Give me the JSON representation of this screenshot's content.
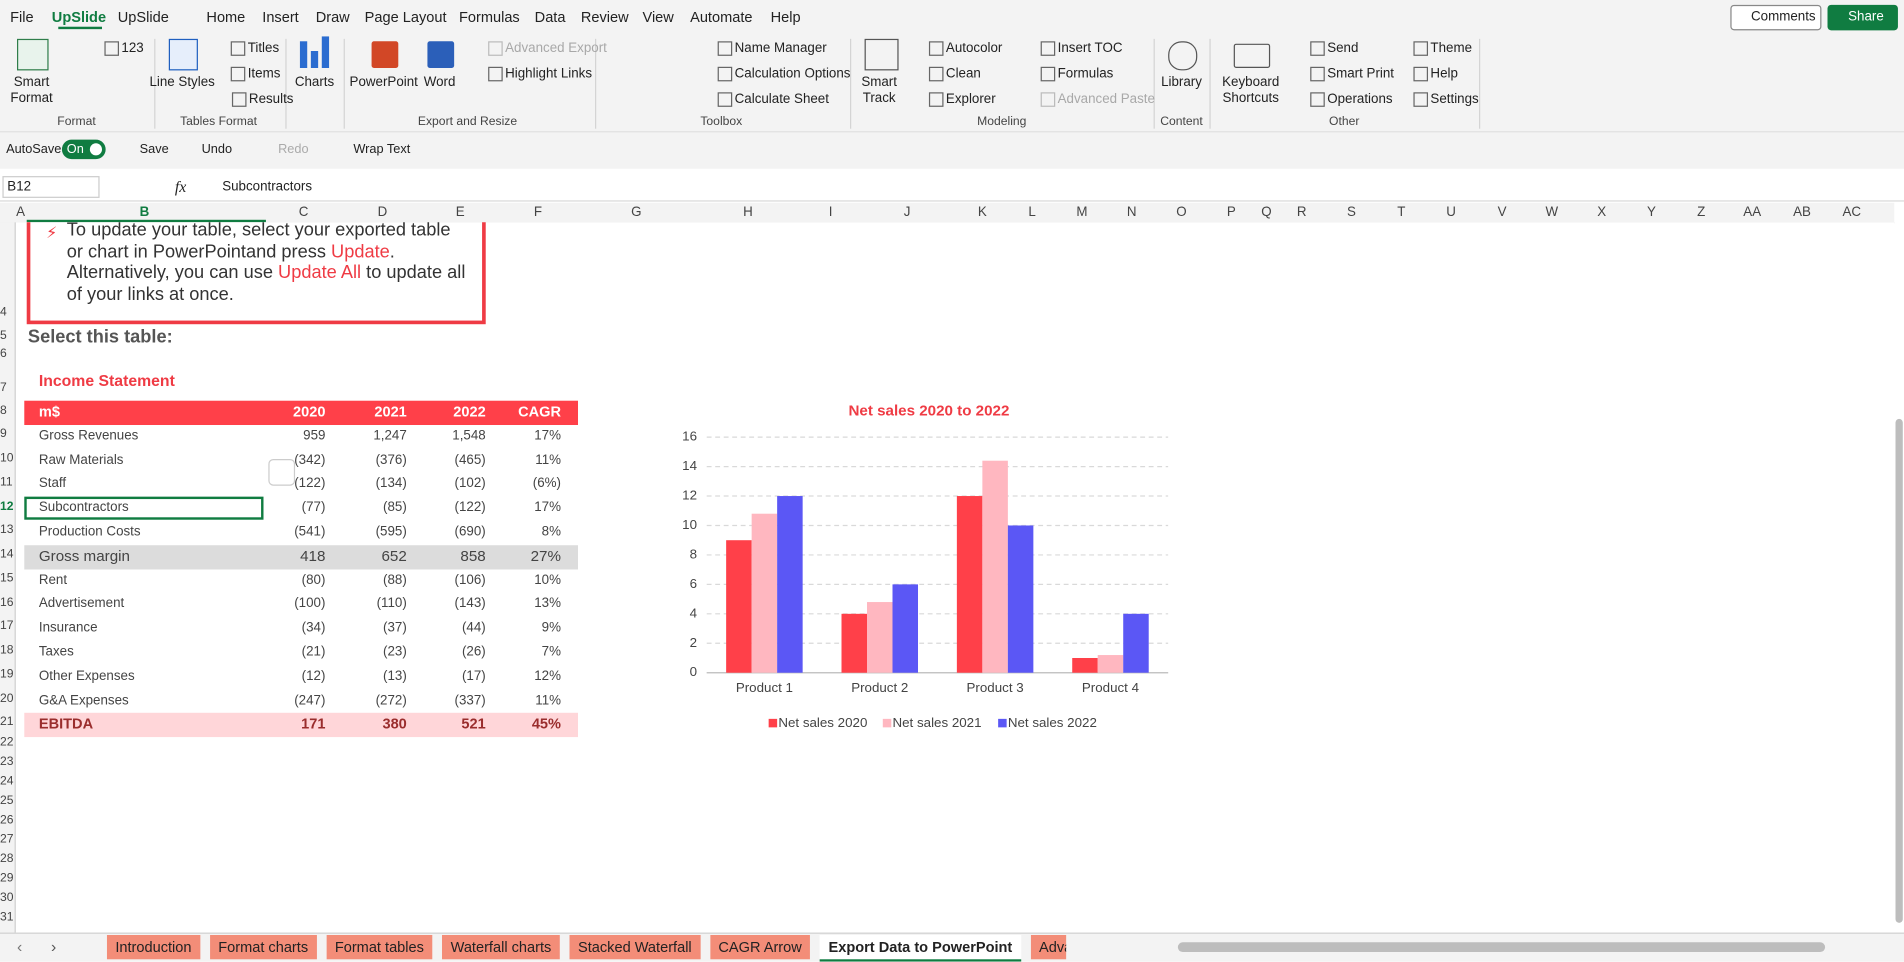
{
  "ribbon_tabs": [
    "File",
    "UpSlide",
    "UpSlide",
    "Home",
    "Insert",
    "Draw",
    "Page Layout",
    "Formulas",
    "Data",
    "Review",
    "View",
    "Automate",
    "Help"
  ],
  "top_buttons": {
    "comments": "Comments",
    "share": "Share"
  },
  "ribbon_groups": [
    "Format",
    "Tables Format",
    "Export and Resize",
    "Toolbox",
    "Modeling",
    "Content",
    "Other"
  ],
  "ribbon_buttons": [
    "Smart Format",
    "123",
    "Line Styles",
    "Titles",
    "Items",
    "Results",
    "Charts",
    "PowerPoint",
    "Word",
    "Advanced Export",
    "Highlight Links",
    "Name Manager",
    "Calculation Options",
    "Calculate Sheet",
    "Smart Track",
    "Autocolor",
    "Clean",
    "Explorer",
    "Insert TOC",
    "Formulas",
    "Advanced Paste",
    "Library",
    "Keyboard Shortcuts",
    "Send",
    "Smart Print",
    "Operations",
    "Theme",
    "Help",
    "Settings"
  ],
  "quick_access": [
    "AutoSave",
    "On",
    "Save",
    "Undo",
    "Redo",
    "Wrap Text"
  ],
  "formula_bar": {
    "name_box": "B12",
    "fx": "fx",
    "content": "Subcontractors"
  },
  "columns": [
    "A",
    "B",
    "C",
    "D",
    "E",
    "F",
    "G",
    "H",
    "I",
    "J",
    "K",
    "L",
    "M",
    "N",
    "O",
    "P",
    "Q",
    "R",
    "S",
    "T",
    "U",
    "V",
    "W",
    "X",
    "Y",
    "Z",
    "AA",
    "AB",
    "AC"
  ],
  "rows": [
    4,
    5,
    6,
    7,
    8,
    9,
    10,
    11,
    12,
    13,
    14,
    15,
    16,
    17,
    18,
    19,
    20,
    21,
    22,
    23,
    24,
    25,
    26,
    27,
    28,
    29,
    30,
    31
  ],
  "callout": [
    "To update your table, select your exported table or chart in PowerPointand press ",
    "Update",
    ". Alternatively, you can use ",
    "Update All",
    " to update all of your links at once."
  ],
  "heading": "Select this table:",
  "table_title": "Income Statement",
  "table": {
    "header": [
      "m$",
      "2020",
      "2021",
      "2022",
      "CAGR"
    ],
    "rows": [
      [
        "Gross Revenues",
        "959",
        "1,247",
        "1,548",
        "17%"
      ],
      [
        "Raw Materials",
        "(342)",
        "(376)",
        "(465)",
        "11%"
      ],
      [
        "Staff",
        "(122)",
        "(134)",
        "(102)",
        "(6%)"
      ],
      [
        "Subcontractors",
        "(77)",
        "(85)",
        "(122)",
        "17%"
      ],
      [
        "Production Costs",
        "(541)",
        "(595)",
        "(690)",
        "8%"
      ],
      [
        "Gross margin",
        "418",
        "652",
        "858",
        "27%"
      ],
      [
        "Rent",
        "(80)",
        "(88)",
        "(106)",
        "10%"
      ],
      [
        "Advertisement",
        "(100)",
        "(110)",
        "(143)",
        "13%"
      ],
      [
        "Insurance",
        "(34)",
        "(37)",
        "(44)",
        "9%"
      ],
      [
        "Taxes",
        "(21)",
        "(23)",
        "(26)",
        "7%"
      ],
      [
        "Other Expenses",
        "(12)",
        "(13)",
        "(17)",
        "12%"
      ],
      [
        "G&A Expenses",
        "(247)",
        "(272)",
        "(337)",
        "11%"
      ],
      [
        "EBITDA",
        "171",
        "380",
        "521",
        "45%"
      ]
    ]
  },
  "chart_data": {
    "type": "bar",
    "title": "Net sales 2020 to 2022",
    "categories": [
      "Product 1",
      "Product 2",
      "Product 3",
      "Product 4"
    ],
    "series": [
      {
        "name": "Net sales 2020",
        "color": "#ff4049",
        "values": [
          9,
          4,
          12,
          1
        ]
      },
      {
        "name": "Net sales 2021",
        "color": "#ffb7c0",
        "values": [
          10.8,
          4.8,
          14.4,
          1.2
        ]
      },
      {
        "name": "Net sales 2022",
        "color": "#5b57f5",
        "values": [
          12,
          6,
          10,
          4
        ]
      }
    ],
    "ylim": [
      0,
      16
    ],
    "yticks": [
      0,
      2,
      4,
      6,
      8,
      10,
      12,
      14,
      16
    ],
    "grid": true,
    "legend": "bottom"
  },
  "sheet_tabs": [
    "Introduction",
    "Format charts",
    "Format tables",
    "Waterfall charts",
    "Stacked Waterfall",
    "CAGR Arrow",
    "Export Data to PowerPoint",
    "Advanced"
  ]
}
